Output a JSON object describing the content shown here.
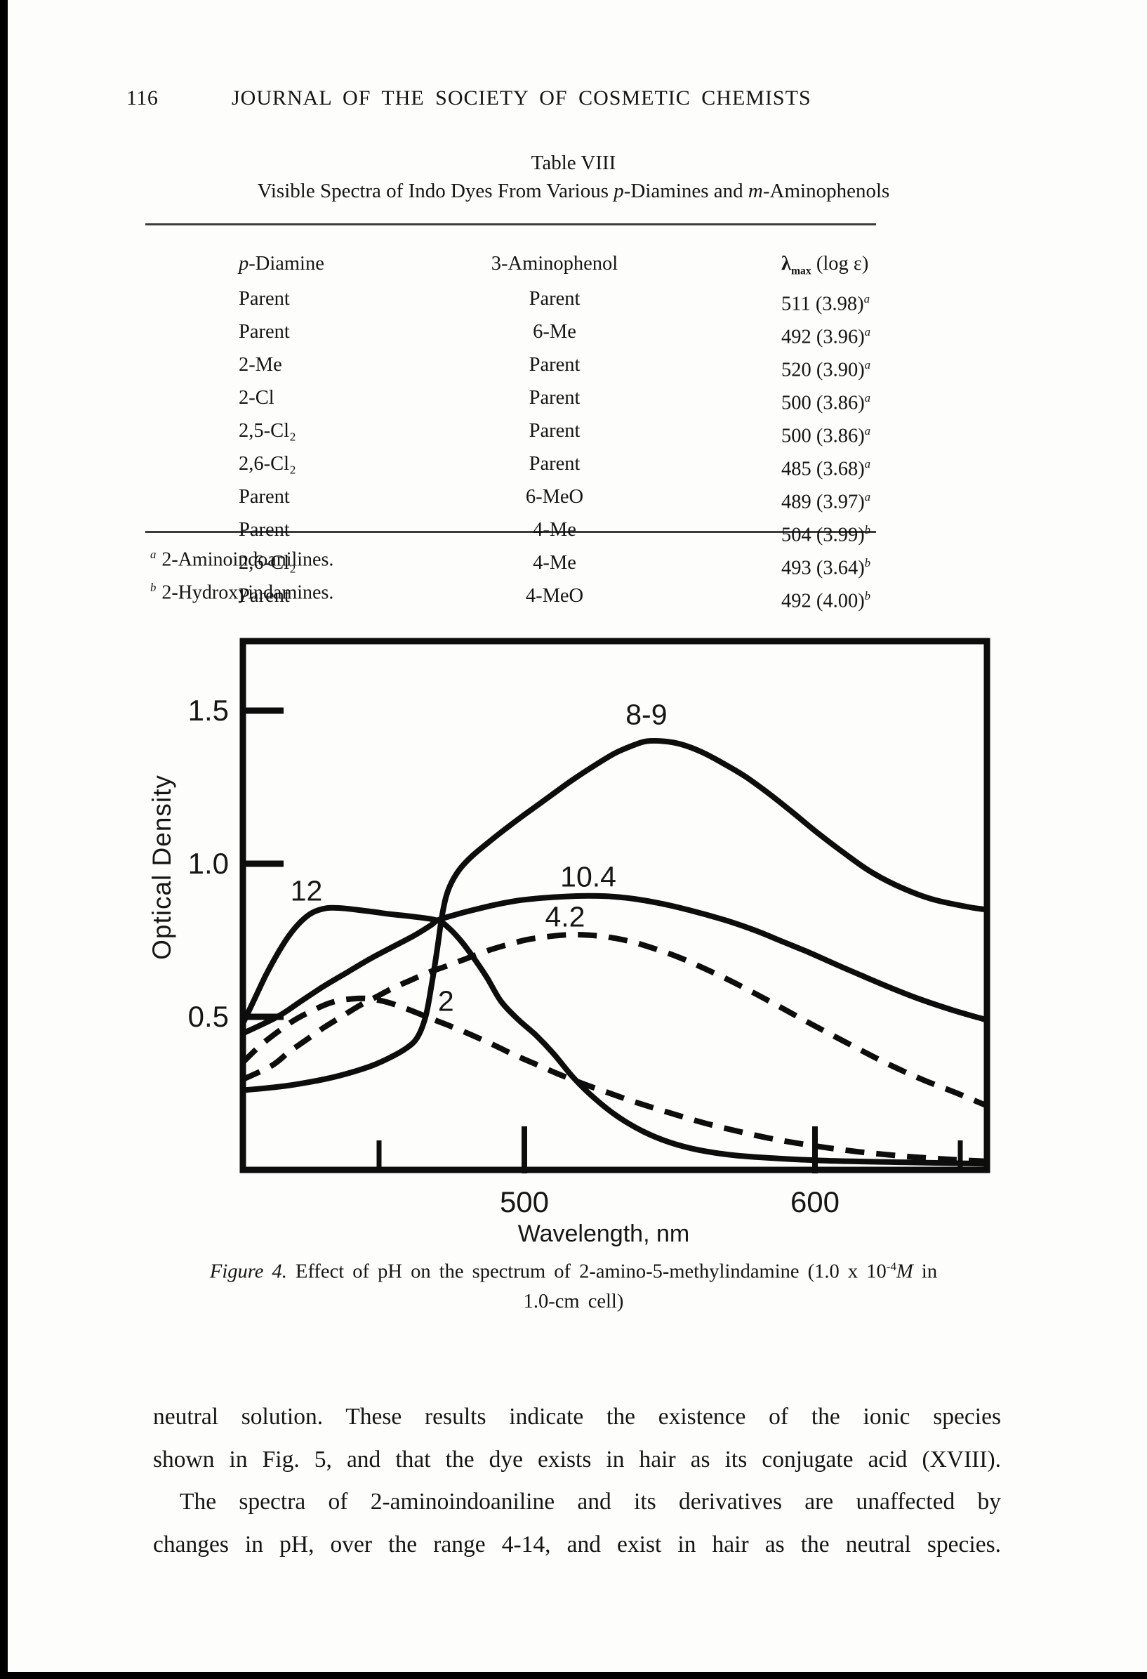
{
  "page": {
    "number": "116",
    "journal_title": "JOURNAL OF THE SOCIETY OF COSMETIC CHEMISTS"
  },
  "table": {
    "title": "Table VIII",
    "subtitle": {
      "pre": "Visible Spectra of Indo Dyes From Various ",
      "p": "p",
      "mid": "-Diamines and ",
      "m": "m",
      "post": "-Aminophenols"
    },
    "columns": {
      "col1_italic": "p",
      "col1_rest": "-Diamine",
      "col2": "3-Aminophenol",
      "col3_lambda": "λ",
      "col3_sub": "max",
      "col3_suffix": " (log ε)"
    },
    "rows": [
      {
        "diamine": "Parent",
        "aminophenol": "Parent",
        "lambda": "511 (3.98)",
        "sup": "a"
      },
      {
        "diamine": "Parent",
        "aminophenol": "6-Me",
        "lambda": "492 (3.96)",
        "sup": "a"
      },
      {
        "diamine": "2-Me",
        "aminophenol": "Parent",
        "lambda": "520 (3.90)",
        "sup": "a"
      },
      {
        "diamine": "2-Cl",
        "aminophenol": "Parent",
        "lambda": "500 (3.86)",
        "sup": "a"
      },
      {
        "diamine": "2,5-Cl₂",
        "aminophenol": "Parent",
        "lambda": "500 (3.86)",
        "sup": "a"
      },
      {
        "diamine": "2,6-Cl₂",
        "aminophenol": "Parent",
        "lambda": "485 (3.68)",
        "sup": "a"
      },
      {
        "diamine": "Parent",
        "aminophenol": "6-MeO",
        "lambda": "489 (3.97)",
        "sup": "a"
      },
      {
        "diamine": "Parent",
        "aminophenol": "4-Me",
        "lambda": "504 (3.99)",
        "sup": "b"
      },
      {
        "diamine": "2,6-Cl₂",
        "aminophenol": "4-Me",
        "lambda": "493 (3.64)",
        "sup": "b"
      },
      {
        "diamine": "Parent",
        "aminophenol": "4-MeO",
        "lambda": "492 (4.00)",
        "sup": "b"
      }
    ],
    "footnotes": [
      {
        "sup": "a",
        "text": "2-Aminoindoanilines."
      },
      {
        "sup": "b",
        "text": "2-Hydroxyindamines."
      }
    ]
  },
  "chart_data": {
    "type": "line",
    "title": "",
    "xlabel": "Wavelength, nm",
    "ylabel": "Optical Density",
    "xlim": [
      403,
      659
    ],
    "ylim": [
      0,
      1.73
    ],
    "x_ticks_major": [
      500,
      600
    ],
    "x_ticks_minor": [
      450,
      650
    ],
    "y_ticks": [
      0.5,
      1.0,
      1.5
    ],
    "grid": false,
    "legend": "curve labels inline (pH values)",
    "series": [
      {
        "label": "8-9",
        "style": "solid",
        "label_pos": [
          542,
          1.455
        ],
        "points": [
          [
            403,
            0.26
          ],
          [
            416,
            0.272
          ],
          [
            425,
            0.285
          ],
          [
            433,
            0.3
          ],
          [
            441,
            0.32
          ],
          [
            448,
            0.342
          ],
          [
            454,
            0.368
          ],
          [
            459,
            0.395
          ],
          [
            463,
            0.43
          ],
          [
            466,
            0.5
          ],
          [
            468,
            0.6
          ],
          [
            470,
            0.72
          ],
          [
            471.5,
            0.82
          ],
          [
            473,
            0.89
          ],
          [
            475,
            0.94
          ],
          [
            478,
            0.985
          ],
          [
            482,
            1.025
          ],
          [
            487,
            1.065
          ],
          [
            493,
            1.11
          ],
          [
            500,
            1.16
          ],
          [
            508,
            1.215
          ],
          [
            516,
            1.27
          ],
          [
            524,
            1.32
          ],
          [
            531,
            1.36
          ],
          [
            537,
            1.385
          ],
          [
            542,
            1.4
          ],
          [
            548,
            1.4
          ],
          [
            554,
            1.39
          ],
          [
            561,
            1.365
          ],
          [
            568,
            1.33
          ],
          [
            576,
            1.285
          ],
          [
            584,
            1.23
          ],
          [
            592,
            1.17
          ],
          [
            601,
            1.1
          ],
          [
            610,
            1.035
          ],
          [
            619,
            0.975
          ],
          [
            629,
            0.925
          ],
          [
            640,
            0.885
          ],
          [
            652,
            0.86
          ],
          [
            659,
            0.85
          ]
        ]
      },
      {
        "label": "10.4",
        "style": "solid",
        "label_pos": [
          522,
          0.925
        ],
        "points": [
          [
            403,
            0.445
          ],
          [
            415,
            0.5
          ],
          [
            423,
            0.55
          ],
          [
            431,
            0.6
          ],
          [
            439,
            0.645
          ],
          [
            447,
            0.69
          ],
          [
            455,
            0.73
          ],
          [
            462,
            0.765
          ],
          [
            468,
            0.8
          ],
          [
            470,
            0.815
          ],
          [
            475,
            0.83
          ],
          [
            482,
            0.848
          ],
          [
            490,
            0.866
          ],
          [
            498,
            0.88
          ],
          [
            506,
            0.888
          ],
          [
            514,
            0.893
          ],
          [
            522,
            0.895
          ],
          [
            530,
            0.893
          ],
          [
            538,
            0.885
          ],
          [
            546,
            0.872
          ],
          [
            554,
            0.855
          ],
          [
            562,
            0.835
          ],
          [
            571,
            0.81
          ],
          [
            580,
            0.78
          ],
          [
            589,
            0.745
          ],
          [
            598,
            0.71
          ],
          [
            607,
            0.672
          ],
          [
            616,
            0.635
          ],
          [
            626,
            0.595
          ],
          [
            636,
            0.558
          ],
          [
            648,
            0.52
          ],
          [
            659,
            0.49
          ]
        ]
      },
      {
        "label": "12",
        "style": "solid",
        "label_pos": [
          425,
          0.88
        ],
        "points": [
          [
            403,
            0.475
          ],
          [
            407,
            0.555
          ],
          [
            411,
            0.635
          ],
          [
            415,
            0.705
          ],
          [
            419,
            0.765
          ],
          [
            423,
            0.81
          ],
          [
            427,
            0.84
          ],
          [
            432,
            0.855
          ],
          [
            437,
            0.855
          ],
          [
            442,
            0.85
          ],
          [
            448,
            0.843
          ],
          [
            454,
            0.835
          ],
          [
            461,
            0.828
          ],
          [
            470,
            0.815
          ],
          [
            474,
            0.79
          ],
          [
            478,
            0.75
          ],
          [
            482,
            0.7
          ],
          [
            487,
            0.63
          ],
          [
            492,
            0.55
          ],
          [
            498,
            0.49
          ],
          [
            504,
            0.44
          ],
          [
            510,
            0.38
          ],
          [
            517,
            0.3
          ],
          [
            524,
            0.235
          ],
          [
            532,
            0.175
          ],
          [
            541,
            0.125
          ],
          [
            550,
            0.09
          ],
          [
            560,
            0.065
          ],
          [
            572,
            0.048
          ],
          [
            586,
            0.038
          ],
          [
            604,
            0.03
          ],
          [
            630,
            0.025
          ],
          [
            659,
            0.02
          ]
        ]
      },
      {
        "label": "4.2",
        "style": "dashed",
        "label_pos": [
          514,
          0.795
        ],
        "points": [
          [
            403,
            0.295
          ],
          [
            413,
            0.34
          ],
          [
            419,
            0.385
          ],
          [
            425,
            0.425
          ],
          [
            431,
            0.465
          ],
          [
            437,
            0.5
          ],
          [
            443,
            0.535
          ],
          [
            449,
            0.565
          ],
          [
            455,
            0.595
          ],
          [
            461,
            0.62
          ],
          [
            467,
            0.645
          ],
          [
            473,
            0.665
          ],
          [
            480,
            0.69
          ],
          [
            487,
            0.715
          ],
          [
            494,
            0.735
          ],
          [
            501,
            0.752
          ],
          [
            508,
            0.762
          ],
          [
            515,
            0.768
          ],
          [
            522,
            0.767
          ],
          [
            529,
            0.76
          ],
          [
            537,
            0.745
          ],
          [
            545,
            0.722
          ],
          [
            553,
            0.695
          ],
          [
            561,
            0.662
          ],
          [
            570,
            0.622
          ],
          [
            579,
            0.578
          ],
          [
            588,
            0.532
          ],
          [
            597,
            0.485
          ],
          [
            606,
            0.44
          ],
          [
            616,
            0.39
          ],
          [
            626,
            0.342
          ],
          [
            637,
            0.295
          ],
          [
            649,
            0.25
          ],
          [
            659,
            0.21
          ]
        ]
      },
      {
        "label": "2",
        "style": "dashed",
        "label_pos": [
          473,
          0.52
        ],
        "points": [
          [
            403,
            0.35
          ],
          [
            409,
            0.405
          ],
          [
            415,
            0.45
          ],
          [
            421,
            0.49
          ],
          [
            427,
            0.52
          ],
          [
            433,
            0.545
          ],
          [
            439,
            0.557
          ],
          [
            445,
            0.56
          ],
          [
            451,
            0.552
          ],
          [
            457,
            0.535
          ],
          [
            463,
            0.513
          ],
          [
            469,
            0.49
          ],
          [
            475,
            0.468
          ],
          [
            482,
            0.44
          ],
          [
            489,
            0.41
          ],
          [
            496,
            0.378
          ],
          [
            504,
            0.345
          ],
          [
            512,
            0.312
          ],
          [
            520,
            0.282
          ],
          [
            528,
            0.255
          ],
          [
            537,
            0.225
          ],
          [
            546,
            0.198
          ],
          [
            555,
            0.172
          ],
          [
            564,
            0.148
          ],
          [
            574,
            0.125
          ],
          [
            584,
            0.104
          ],
          [
            594,
            0.087
          ],
          [
            606,
            0.07
          ],
          [
            619,
            0.055
          ],
          [
            633,
            0.043
          ],
          [
            647,
            0.034
          ],
          [
            659,
            0.028
          ]
        ]
      }
    ]
  },
  "caption": {
    "fig_label": "Figure 4.",
    "line1_pre": " Effect of pH on the spectrum of 2-amino-5-methylindamine (1.0 x 10",
    "exponent": "-4",
    "molar": "M",
    "line1_post": " in",
    "line2": "1.0-cm cell)"
  },
  "body": {
    "lines": [
      {
        "text": "neutral solution. These results indicate the existence of the ionic species",
        "indent": false
      },
      {
        "text": "shown in Fig. 5, and that the dye exists in hair as its conjugate acid (XVIII).",
        "indent": false
      },
      {
        "text": "The spectra of 2-aminoindoaniline and its derivatives are unaffected by",
        "indent": true
      },
      {
        "text": "changes in pH, over the range 4-14, and exist in hair as the neutral species.",
        "indent": false
      }
    ]
  },
  "colors": {
    "ink": "#0d0d0d",
    "paper": "#fdfdfc",
    "rule": "#3c3c3c"
  }
}
